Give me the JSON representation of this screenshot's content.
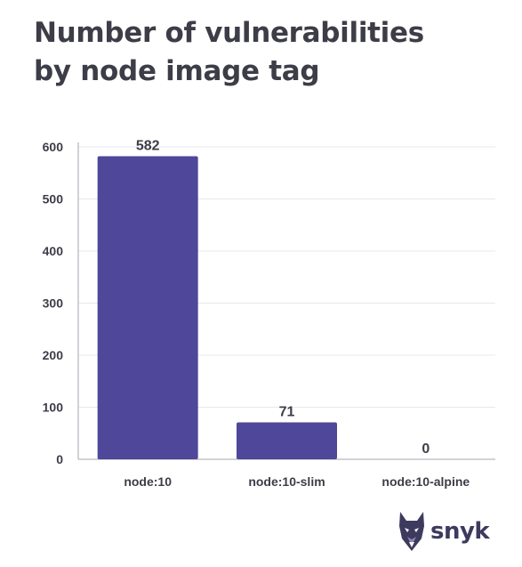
{
  "title_lines": [
    "Number of vulnerabilities",
    "by node image tag"
  ],
  "colors": {
    "bar": "#4e479a",
    "text": "#3d3d48",
    "grid": "#e8e8ec",
    "axis": "#c4c4ca",
    "logo": "#3d3a5e"
  },
  "logo": {
    "text": "snyk",
    "icon": "doberman-dog-icon"
  },
  "chart_data": {
    "type": "bar",
    "title": "Number of vulnerabilities by node image tag",
    "xlabel": "",
    "ylabel": "",
    "categories": [
      "node:10",
      "node:10-slim",
      "node:10-alpine"
    ],
    "values": [
      582,
      71,
      0
    ],
    "data_labels": [
      "582",
      "71",
      "0"
    ],
    "ylim": [
      0,
      600
    ],
    "yticks": [
      0,
      100,
      200,
      300,
      400,
      500,
      600
    ],
    "grid": true,
    "legend": "none"
  }
}
